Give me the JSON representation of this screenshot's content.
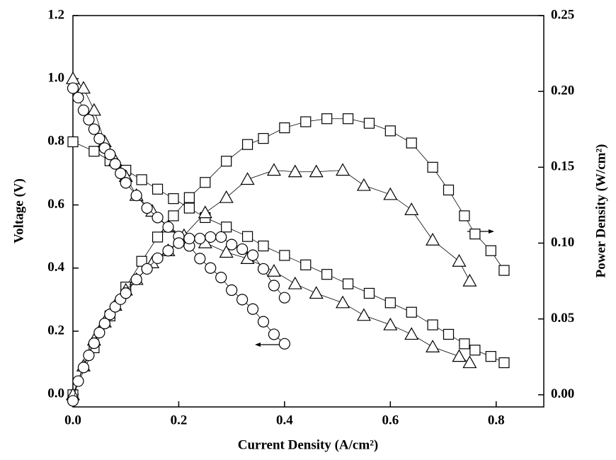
{
  "chart_data": {
    "type": "line",
    "xlabel": "Current Density (A/cm²)",
    "ylabel": "Voltage (V)",
    "y2label": "Power Density (W/cm²)",
    "xlim": [
      0,
      0.89
    ],
    "ylim": [
      -0.04,
      1.2
    ],
    "y2lim": [
      -0.008,
      0.25
    ],
    "xticks": [
      {
        "value": 0,
        "label": "0.0"
      },
      {
        "value": 0.2,
        "label": "0.2"
      },
      {
        "value": 0.4,
        "label": "0.4"
      },
      {
        "value": 0.6,
        "label": "0.6"
      },
      {
        "value": 0.8,
        "label": "0.8"
      }
    ],
    "yticks": [
      {
        "value": 0,
        "label": "0.0"
      },
      {
        "value": 0.2,
        "label": "0.2"
      },
      {
        "value": 0.4,
        "label": "0.4"
      },
      {
        "value": 0.6,
        "label": "0.6"
      },
      {
        "value": 0.8,
        "label": "0.8"
      },
      {
        "value": 1,
        "label": "1.0"
      },
      {
        "value": 1.2,
        "label": "1.2"
      }
    ],
    "y2ticks": [
      {
        "value": 0,
        "label": "0.00"
      },
      {
        "value": 0.05,
        "label": "0.05"
      },
      {
        "value": 0.1,
        "label": "0.10"
      },
      {
        "value": 0.15,
        "label": "0.15"
      },
      {
        "value": 0.2,
        "label": "0.20"
      },
      {
        "value": 0.25,
        "label": "0.25"
      }
    ],
    "series": [
      {
        "marker": "square",
        "color": "#000000",
        "axis": "y",
        "x": [
          0,
          0.04,
          0.07,
          0.1,
          0.13,
          0.16,
          0.19,
          0.22,
          0.25,
          0.29,
          0.33,
          0.36,
          0.4,
          0.44,
          0.48,
          0.52,
          0.56,
          0.6,
          0.64,
          0.68,
          0.71,
          0.74,
          0.76,
          0.79,
          0.815
        ],
        "values": [
          0.8,
          0.77,
          0.74,
          0.71,
          0.68,
          0.65,
          0.62,
          0.59,
          0.56,
          0.53,
          0.5,
          0.47,
          0.44,
          0.41,
          0.38,
          0.35,
          0.32,
          0.29,
          0.26,
          0.22,
          0.19,
          0.16,
          0.14,
          0.12,
          0.1
        ]
      },
      {
        "marker": "square",
        "color": "#000000",
        "axis": "y2",
        "x": [
          0,
          0.04,
          0.07,
          0.1,
          0.13,
          0.16,
          0.19,
          0.22,
          0.25,
          0.29,
          0.33,
          0.36,
          0.4,
          0.44,
          0.48,
          0.52,
          0.56,
          0.6,
          0.64,
          0.68,
          0.71,
          0.74,
          0.76,
          0.79,
          0.815
        ],
        "values": [
          0,
          0.031,
          0.052,
          0.071,
          0.088,
          0.104,
          0.118,
          0.13,
          0.14,
          0.154,
          0.165,
          0.169,
          0.176,
          0.18,
          0.182,
          0.182,
          0.179,
          0.174,
          0.166,
          0.15,
          0.135,
          0.118,
          0.106,
          0.095,
          0.082
        ]
      },
      {
        "marker": "triangle",
        "color": "#000000",
        "axis": "y",
        "x": [
          0,
          0.02,
          0.04,
          0.06,
          0.08,
          0.1,
          0.12,
          0.15,
          0.18,
          0.21,
          0.25,
          0.29,
          0.33,
          0.38,
          0.42,
          0.46,
          0.51,
          0.55,
          0.6,
          0.64,
          0.68,
          0.73,
          0.75
        ],
        "values": [
          1.0,
          0.97,
          0.9,
          0.8,
          0.74,
          0.69,
          0.63,
          0.58,
          0.53,
          0.5,
          0.48,
          0.45,
          0.43,
          0.39,
          0.35,
          0.32,
          0.29,
          0.25,
          0.22,
          0.19,
          0.15,
          0.12,
          0.1
        ]
      },
      {
        "marker": "triangle",
        "color": "#000000",
        "axis": "y2",
        "x": [
          0,
          0.02,
          0.04,
          0.06,
          0.08,
          0.1,
          0.12,
          0.15,
          0.18,
          0.21,
          0.25,
          0.29,
          0.33,
          0.38,
          0.42,
          0.46,
          0.51,
          0.55,
          0.6,
          0.64,
          0.68,
          0.73,
          0.75
        ],
        "values": [
          0,
          0.019,
          0.036,
          0.048,
          0.059,
          0.069,
          0.076,
          0.087,
          0.095,
          0.105,
          0.12,
          0.13,
          0.142,
          0.148,
          0.147,
          0.147,
          0.148,
          0.138,
          0.132,
          0.122,
          0.102,
          0.088,
          0.075
        ]
      },
      {
        "marker": "circle",
        "color": "#000000",
        "axis": "y",
        "x": [
          0,
          0.01,
          0.02,
          0.03,
          0.04,
          0.05,
          0.06,
          0.07,
          0.08,
          0.09,
          0.1,
          0.12,
          0.14,
          0.16,
          0.18,
          0.2,
          0.22,
          0.24,
          0.26,
          0.28,
          0.3,
          0.32,
          0.34,
          0.36,
          0.38,
          0.4
        ],
        "values": [
          0.97,
          0.94,
          0.9,
          0.87,
          0.84,
          0.81,
          0.78,
          0.76,
          0.73,
          0.7,
          0.67,
          0.63,
          0.59,
          0.56,
          0.53,
          0.5,
          0.47,
          0.43,
          0.4,
          0.37,
          0.33,
          0.3,
          0.27,
          0.23,
          0.19,
          0.16
        ]
      },
      {
        "marker": "circle",
        "color": "#000000",
        "axis": "y2",
        "x": [
          0,
          0.01,
          0.02,
          0.03,
          0.04,
          0.05,
          0.06,
          0.07,
          0.08,
          0.09,
          0.1,
          0.12,
          0.14,
          0.16,
          0.18,
          0.2,
          0.22,
          0.24,
          0.26,
          0.28,
          0.3,
          0.32,
          0.34,
          0.36,
          0.38,
          0.4
        ],
        "values": [
          -0.004,
          0.009,
          0.018,
          0.026,
          0.034,
          0.041,
          0.047,
          0.053,
          0.058,
          0.063,
          0.067,
          0.076,
          0.083,
          0.09,
          0.095,
          0.1,
          0.103,
          0.103,
          0.104,
          0.104,
          0.099,
          0.096,
          0.092,
          0.083,
          0.072,
          0.064
        ]
      }
    ]
  }
}
